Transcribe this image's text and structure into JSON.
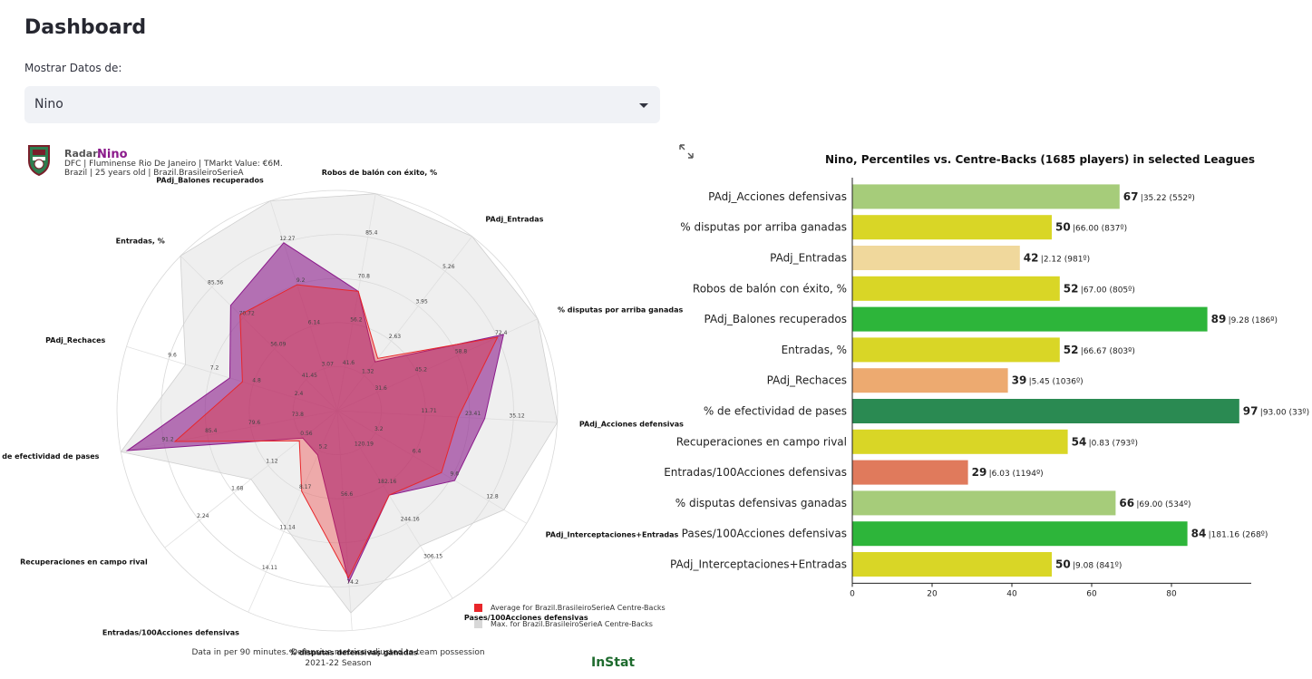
{
  "page": {
    "title": "Dashboard"
  },
  "selector": {
    "label": "Mostrar Datos de:",
    "value": "Nino"
  },
  "radar": {
    "label_prefix": "Radar/",
    "player": "Nino",
    "info_line1": "DFC | Fluminense Rio De Janeiro | TMarkt Value: €6M.",
    "info_line2": "Brazil | 25 years old | Brazil.BrasileiroSerieA",
    "footer_line1": "Data in per 90 minutes. Defensive metrics adjusted to team possession",
    "footer_line2": "2021-22 Season",
    "brand": "InStat",
    "legend": [
      {
        "label": "Average for Brazil.BrasileiroSerieA Centre-Backs",
        "color": "#e8262a"
      },
      {
        "label": "Max. for Brazil.BrasileiroSerieA Centre-Backs",
        "color": "#d8d8d8"
      }
    ],
    "axes": [
      {
        "name": "Robos de balón con éxito, %",
        "ticks": [
          "85.4",
          "70.8",
          "56.2",
          "41.6"
        ],
        "player": 0.55,
        "avg": 0.55,
        "max": 1.0
      },
      {
        "name": "PAdj_Entradas",
        "ticks": [
          "5.26",
          "3.95",
          "2.63",
          "1.32"
        ],
        "player": 0.28,
        "avg": 0.3,
        "max": 1.0
      },
      {
        "name": "% disputas por arriba ganadas",
        "ticks": [
          "72.4",
          "58.8",
          "45.2",
          "31.6"
        ],
        "player": 0.83,
        "avg": 0.8,
        "max": 1.0
      },
      {
        "name": "PAdj_Acciones defensivas",
        "ticks": [
          "35.12",
          "23.41",
          "11.71",
          ""
        ],
        "player": 0.67,
        "avg": 0.55,
        "max": 1.0
      },
      {
        "name": "PAdj_Interceptaciones+Entradas",
        "ticks": [
          "12.8",
          "9.6",
          "6.4",
          "3.2"
        ],
        "player": 0.62,
        "avg": 0.55,
        "max": 0.88
      },
      {
        "name": "Pases/100Acciones defensivas",
        "ticks": [
          "306.15",
          "244.16",
          "182.16",
          "120.19"
        ],
        "player": 0.45,
        "avg": 0.45,
        "max": 0.72
      },
      {
        "name": "% disputas defensivas ganadas",
        "ticks": [
          "74.2",
          "",
          "56.6",
          ""
        ],
        "player": 0.78,
        "avg": 0.76,
        "max": 0.92
      },
      {
        "name": "Entradas/100Acciones defensivas",
        "ticks": [
          "14.11",
          "11.14",
          "8.17",
          "5.2"
        ],
        "player": 0.22,
        "avg": 0.4,
        "max": 0.58
      },
      {
        "name": "Recuperaciones en campo rival",
        "ticks": [
          "2.24",
          "1.68",
          "1.12",
          "0.56"
        ],
        "player": 0.2,
        "avg": 0.22,
        "max": 0.5
      },
      {
        "name": "% de efectividad de pases",
        "ticks": [
          "91.2",
          "85.4",
          "79.6",
          "73.8"
        ],
        "player": 0.97,
        "avg": 0.75,
        "max": 1.0
      },
      {
        "name": "PAdj_Rechaces",
        "ticks": [
          "9.6",
          "7.2",
          "4.8",
          "2.4"
        ],
        "player": 0.51,
        "avg": 0.45,
        "max": 0.72
      },
      {
        "name": "Entradas, %",
        "ticks": [
          "85.36",
          "70.72",
          "56.09",
          "41.45"
        ],
        "player": 0.68,
        "avg": 0.62,
        "max": 1.0
      },
      {
        "name": "PAdj_Balones recuperados",
        "ticks": [
          "12.27",
          "9.2",
          "6.14",
          "3.07"
        ],
        "player": 0.8,
        "avg": 0.6,
        "max": 1.0
      }
    ]
  },
  "chart_data": {
    "type": "bar",
    "title": "Nino, Percentiles vs. Centre-Backs (1685 players) in selected Leagues",
    "xlim": [
      0,
      100
    ],
    "xticks": [
      0,
      20,
      40,
      60,
      80
    ],
    "categories": [
      "PAdj_Acciones defensivas",
      "% disputas por arriba ganadas",
      "PAdj_Entradas",
      "Robos de balón con éxito, %",
      "PAdj_Balones recuperados",
      "Entradas, %",
      "PAdj_Rechaces",
      "% de efectividad de pases",
      "Recuperaciones en campo rival",
      "Entradas/100Acciones defensivas",
      "% disputas defensivas ganadas",
      "Pases/100Acciones defensivas",
      "PAdj_Interceptaciones+Entradas"
    ],
    "values": [
      67,
      50,
      42,
      52,
      89,
      52,
      39,
      97,
      54,
      29,
      66,
      84,
      50
    ],
    "annotations": [
      "|35.22 (552º)",
      "|66.00 (837º)",
      "|2.12 (981º)",
      "|67.00 (805º)",
      "|9.28 (186º)",
      "|66.67 (803º)",
      "|5.45 (1036º)",
      "|93.00 (33º)",
      "|0.83 (793º)",
      "|6.03 (1194º)",
      "|69.00 (534º)",
      "|181.16 (268º)",
      "|9.08 (841º)"
    ],
    "colors": [
      "#a6cc7a",
      "#d9d626",
      "#f0d89c",
      "#d9d626",
      "#2db53a",
      "#d9d626",
      "#edaa70",
      "#2a8a52",
      "#d9d626",
      "#e07a5c",
      "#a6cc7a",
      "#2db53a",
      "#d9d626"
    ]
  }
}
